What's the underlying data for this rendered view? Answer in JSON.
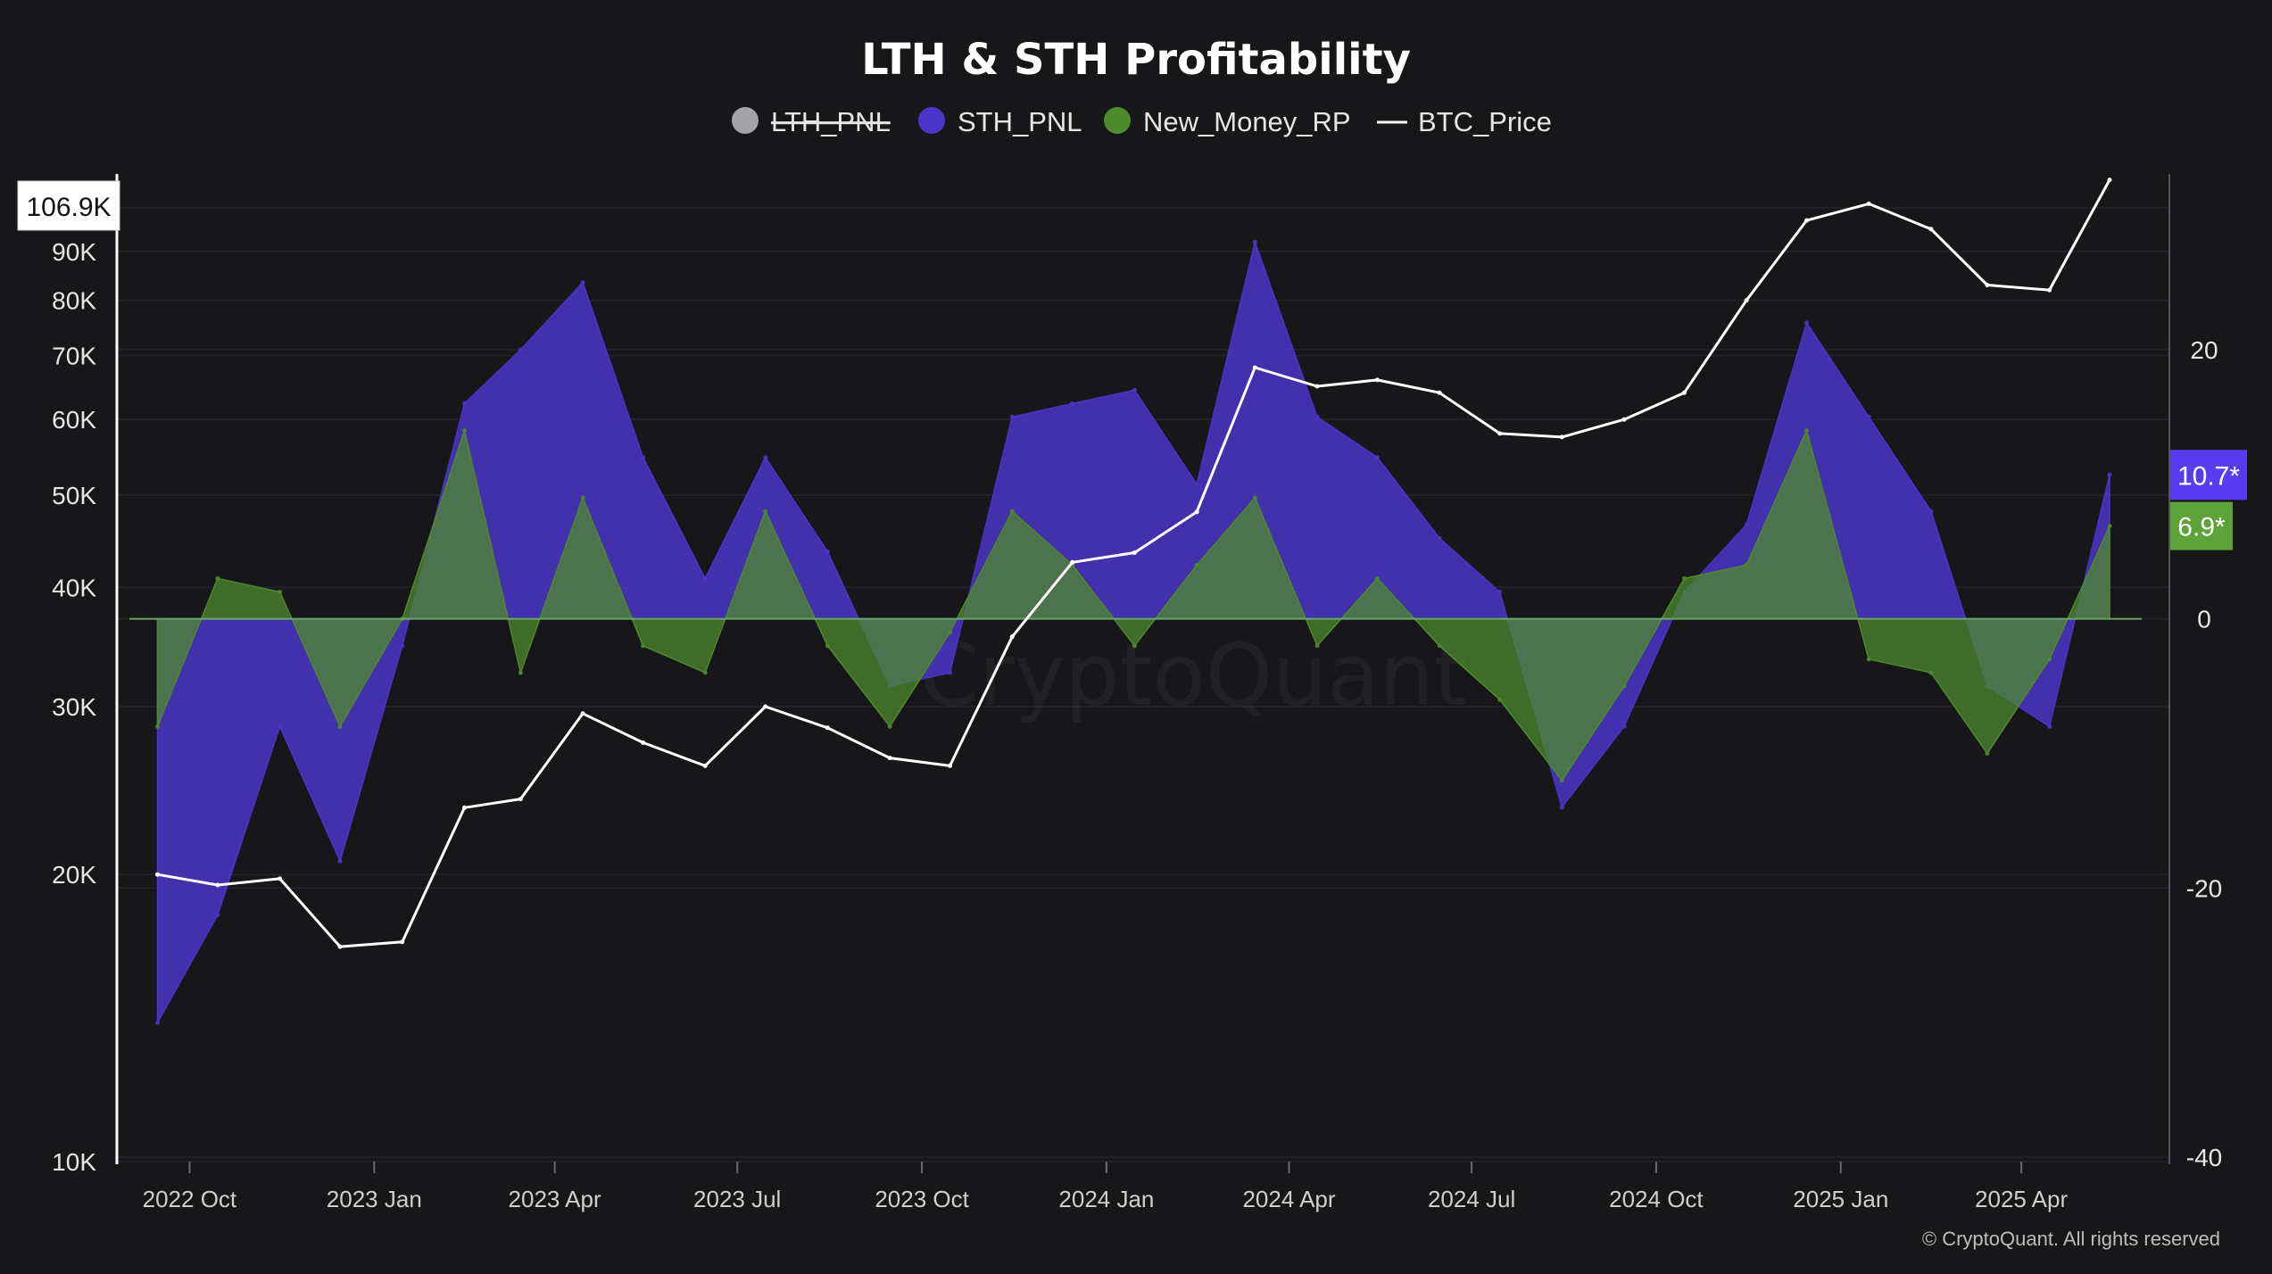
{
  "chart_data": {
    "type": "line",
    "title": "LTH & STH Profitability",
    "legend": [
      {
        "name": "LTH_PNL",
        "color": "#a4a4a8",
        "marker": "dot",
        "hidden": true
      },
      {
        "name": "STH_PNL",
        "color": "#4b35c8",
        "marker": "dot",
        "hidden": false
      },
      {
        "name": "New_Money_RP",
        "color": "#4e8a2e",
        "marker": "dot",
        "hidden": false
      },
      {
        "name": "BTC_Price",
        "color": "#ffffff",
        "marker": "line",
        "hidden": false
      }
    ],
    "legend_position": "top-center",
    "x_ticks": [
      "2022 Oct",
      "2023 Jan",
      "2023 Apr",
      "2023 Jul",
      "2023 Oct",
      "2024 Jan",
      "2024 Apr",
      "2024 Jul",
      "2024 Oct",
      "2025 Jan",
      "2025 Apr"
    ],
    "x_range": [
      "2022-09-01",
      "2025-05-31"
    ],
    "y_left": {
      "scale": "log",
      "range": [
        10000,
        110000
      ],
      "ticks": [
        "10K",
        "20K",
        "30K",
        "40K",
        "50K",
        "60K",
        "70K",
        "80K",
        "90K",
        "100K"
      ],
      "tick_values": [
        10000,
        20000,
        30000,
        40000,
        50000,
        60000,
        70000,
        80000,
        90000,
        100000
      ]
    },
    "y_right": {
      "scale": "linear",
      "range": [
        -40,
        33
      ],
      "ticks": [
        "20",
        "0",
        "-20",
        "-40"
      ],
      "tick_values": [
        20,
        0,
        -20,
        -40
      ]
    },
    "grid": true,
    "last_values": {
      "BTC_Price": "106.9K",
      "STH_PNL": "10.7*",
      "New_Money_RP": "6.9*"
    },
    "series": [
      {
        "name": "BTC_Price",
        "axis": "left",
        "x": [
          "2022-09",
          "2022-10",
          "2022-11",
          "2022-12",
          "2023-01",
          "2023-02",
          "2023-03",
          "2023-04",
          "2023-05",
          "2023-06",
          "2023-07",
          "2023-08",
          "2023-09",
          "2023-10",
          "2023-11",
          "2023-12",
          "2024-01",
          "2024-02",
          "2024-03",
          "2024-04",
          "2024-05",
          "2024-06",
          "2024-07",
          "2024-08",
          "2024-09",
          "2024-10",
          "2024-11",
          "2024-12",
          "2025-01",
          "2025-02",
          "2025-03",
          "2025-04",
          "2025-05"
        ],
        "values": [
          20000,
          19500,
          19800,
          16800,
          17000,
          23500,
          24000,
          29500,
          27500,
          26000,
          30000,
          28500,
          26500,
          26000,
          35500,
          42500,
          43500,
          48000,
          68000,
          65000,
          66000,
          64000,
          58000,
          57500,
          60000,
          64000,
          80000,
          97000,
          101000,
          95000,
          83000,
          82000,
          107000
        ]
      },
      {
        "name": "STH_PNL",
        "axis": "right",
        "x": [
          "2022-09",
          "2022-10",
          "2022-11",
          "2022-12",
          "2023-01",
          "2023-02",
          "2023-03",
          "2023-04",
          "2023-05",
          "2023-06",
          "2023-07",
          "2023-08",
          "2023-09",
          "2023-10",
          "2023-11",
          "2023-12",
          "2024-01",
          "2024-02",
          "2024-03",
          "2024-04",
          "2024-05",
          "2024-06",
          "2024-07",
          "2024-08",
          "2024-09",
          "2024-10",
          "2024-11",
          "2024-12",
          "2025-01",
          "2025-02",
          "2025-03",
          "2025-04",
          "2025-05"
        ],
        "values": [
          -30,
          -22,
          -8,
          -18,
          -2,
          16,
          20,
          25,
          12,
          3,
          12,
          5,
          -5,
          -4,
          15,
          16,
          17,
          10,
          28,
          15,
          12,
          6,
          2,
          -14,
          -8,
          2,
          7,
          22,
          15,
          8,
          -5,
          -8,
          10.7
        ]
      },
      {
        "name": "New_Money_RP",
        "axis": "right",
        "x": [
          "2022-09",
          "2022-10",
          "2022-11",
          "2022-12",
          "2023-01",
          "2023-02",
          "2023-03",
          "2023-04",
          "2023-05",
          "2023-06",
          "2023-07",
          "2023-08",
          "2023-09",
          "2023-10",
          "2023-11",
          "2023-12",
          "2024-01",
          "2024-02",
          "2024-03",
          "2024-04",
          "2024-05",
          "2024-06",
          "2024-07",
          "2024-08",
          "2024-09",
          "2024-10",
          "2024-11",
          "2024-12",
          "2025-01",
          "2025-02",
          "2025-03",
          "2025-04",
          "2025-05"
        ],
        "values": [
          -8,
          3,
          2,
          -8,
          0,
          14,
          -4,
          9,
          -2,
          -4,
          8,
          -2,
          -8,
          -1,
          8,
          4,
          -2,
          4,
          9,
          -2,
          3,
          -2,
          -6,
          -12,
          -5,
          3,
          4,
          14,
          -3,
          -4,
          -10,
          -3,
          6.9
        ]
      }
    ]
  },
  "watermark": "CryptoQuant",
  "copyright": "© CryptoQuant. All rights reserved"
}
